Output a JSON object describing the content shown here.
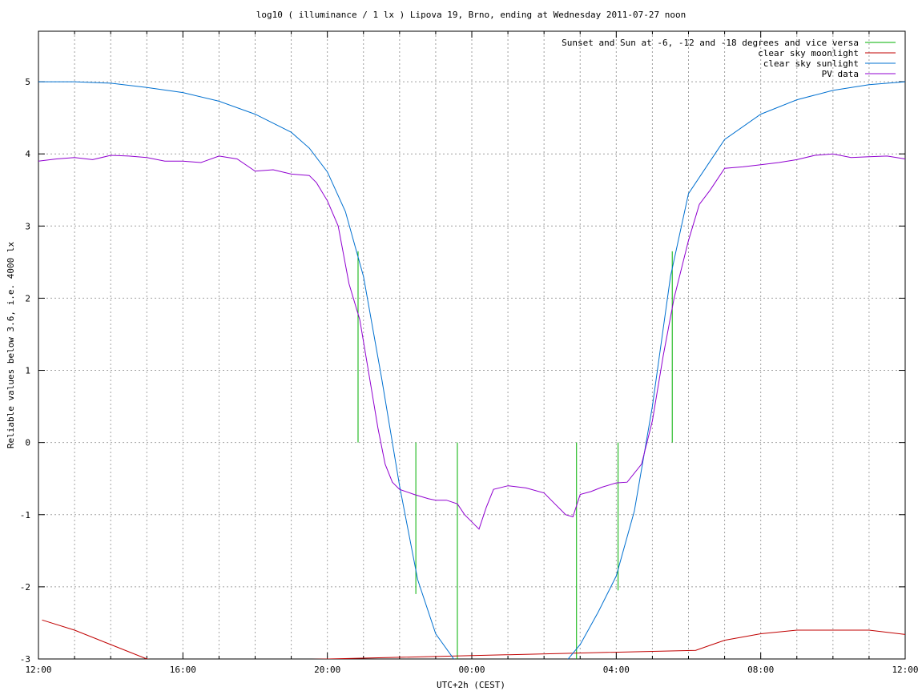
{
  "chart_data": {
    "type": "line",
    "title": "log10 ( illuminance / 1 lx ) Lipova 19, Brno, ending at Wednesday 2011-07-27 noon",
    "xlabel": "UTC+2h (CEST)",
    "ylabel": "Reliable values below 3.6, i.e. 4000 lx",
    "xlim": [
      12,
      36
    ],
    "ylim": [
      -3,
      5.7
    ],
    "grid": true,
    "legend_position": "top-right",
    "x_ticks": [
      {
        "value": 12,
        "label": "12:00"
      },
      {
        "value": 16,
        "label": "16:00"
      },
      {
        "value": 20,
        "label": "20:00"
      },
      {
        "value": 24,
        "label": "00:00"
      },
      {
        "value": 28,
        "label": "04:00"
      },
      {
        "value": 32,
        "label": "08:00"
      },
      {
        "value": 36,
        "label": "12:00"
      }
    ],
    "x_minor_grid_step": 1,
    "y_ticks": [
      5,
      4,
      3,
      2,
      1,
      0,
      -1,
      -2,
      -3
    ],
    "series": [
      {
        "name": "Sunset and Sun at -6, -12 and -18 degrees and vice versa",
        "color": "#00b000",
        "style": "vertical-markers",
        "markers": [
          {
            "x": 20.85,
            "y0": 0,
            "y1": 2.65
          },
          {
            "x": 22.45,
            "y0": 0,
            "y1": -2.1
          },
          {
            "x": 23.6,
            "y0": 0,
            "y1": -3
          },
          {
            "x": 26.9,
            "y0": 0,
            "y1": -3
          },
          {
            "x": 28.05,
            "y0": 0,
            "y1": -2.05
          },
          {
            "x": 29.55,
            "y0": 0,
            "y1": 2.65
          }
        ]
      },
      {
        "name": "clear sky moonlight",
        "color": "#c00000",
        "x": [
          12.1,
          13,
          14,
          15,
          15.8,
          30.2,
          31,
          32,
          33,
          34,
          35,
          36
        ],
        "y": [
          -2.46,
          -2.6,
          -2.8,
          -3.0,
          -3.05,
          -2.88,
          -2.74,
          -2.65,
          -2.6,
          -2.6,
          -2.6,
          -2.66
        ]
      },
      {
        "name": "clear sky sunlight",
        "color": "#0070d0",
        "x": [
          12,
          13,
          14,
          15,
          16,
          17,
          18,
          19,
          19.5,
          20,
          20.5,
          21,
          21.5,
          22,
          22.5,
          23,
          23.5,
          24,
          26.5,
          27,
          27.5,
          28,
          28.5,
          29,
          29.5,
          30,
          31,
          32,
          33,
          34,
          35,
          36
        ],
        "y": [
          5.0,
          5.0,
          4.98,
          4.92,
          4.85,
          4.73,
          4.55,
          4.3,
          4.08,
          3.75,
          3.2,
          2.3,
          0.9,
          -0.6,
          -1.9,
          -2.65,
          -3.0,
          -3.1,
          -3.1,
          -2.8,
          -2.35,
          -1.85,
          -0.95,
          0.5,
          2.3,
          3.45,
          4.2,
          4.55,
          4.75,
          4.88,
          4.96,
          5.0
        ]
      },
      {
        "name": "PV data",
        "color": "#9000d0",
        "x": [
          12,
          12.5,
          13,
          13.5,
          14,
          14.5,
          15,
          15.5,
          16,
          16.5,
          17,
          17.5,
          18,
          18.5,
          19,
          19.5,
          19.7,
          20,
          20.3,
          20.6,
          20.9,
          21.2,
          21.4,
          21.6,
          21.8,
          22,
          22.4,
          22.8,
          23,
          23.3,
          23.6,
          23.8,
          24,
          24.2,
          24.4,
          24.6,
          25,
          25.5,
          26,
          26.3,
          26.6,
          26.8,
          27,
          27.3,
          27.6,
          28,
          28.3,
          28.7,
          29,
          29.3,
          29.6,
          30,
          30.3,
          30.6,
          31,
          31.5,
          32,
          32.5,
          33,
          33.5,
          34,
          34.5,
          35,
          35.5,
          36
        ],
        "y": [
          3.9,
          3.93,
          3.95,
          3.92,
          3.98,
          3.97,
          3.95,
          3.9,
          3.9,
          3.88,
          3.97,
          3.93,
          3.76,
          3.78,
          3.72,
          3.7,
          3.6,
          3.35,
          3.0,
          2.2,
          1.7,
          0.8,
          0.2,
          -0.3,
          -0.55,
          -0.65,
          -0.72,
          -0.78,
          -0.8,
          -0.8,
          -0.85,
          -1.0,
          -1.1,
          -1.2,
          -0.9,
          -0.65,
          -0.6,
          -0.63,
          -0.7,
          -0.85,
          -1.0,
          -1.03,
          -0.72,
          -0.68,
          -0.62,
          -0.56,
          -0.55,
          -0.3,
          0.3,
          1.2,
          2.0,
          2.8,
          3.3,
          3.5,
          3.8,
          3.82,
          3.85,
          3.88,
          3.92,
          3.98,
          4.0,
          3.95,
          3.96,
          3.97,
          3.93
        ]
      }
    ]
  }
}
